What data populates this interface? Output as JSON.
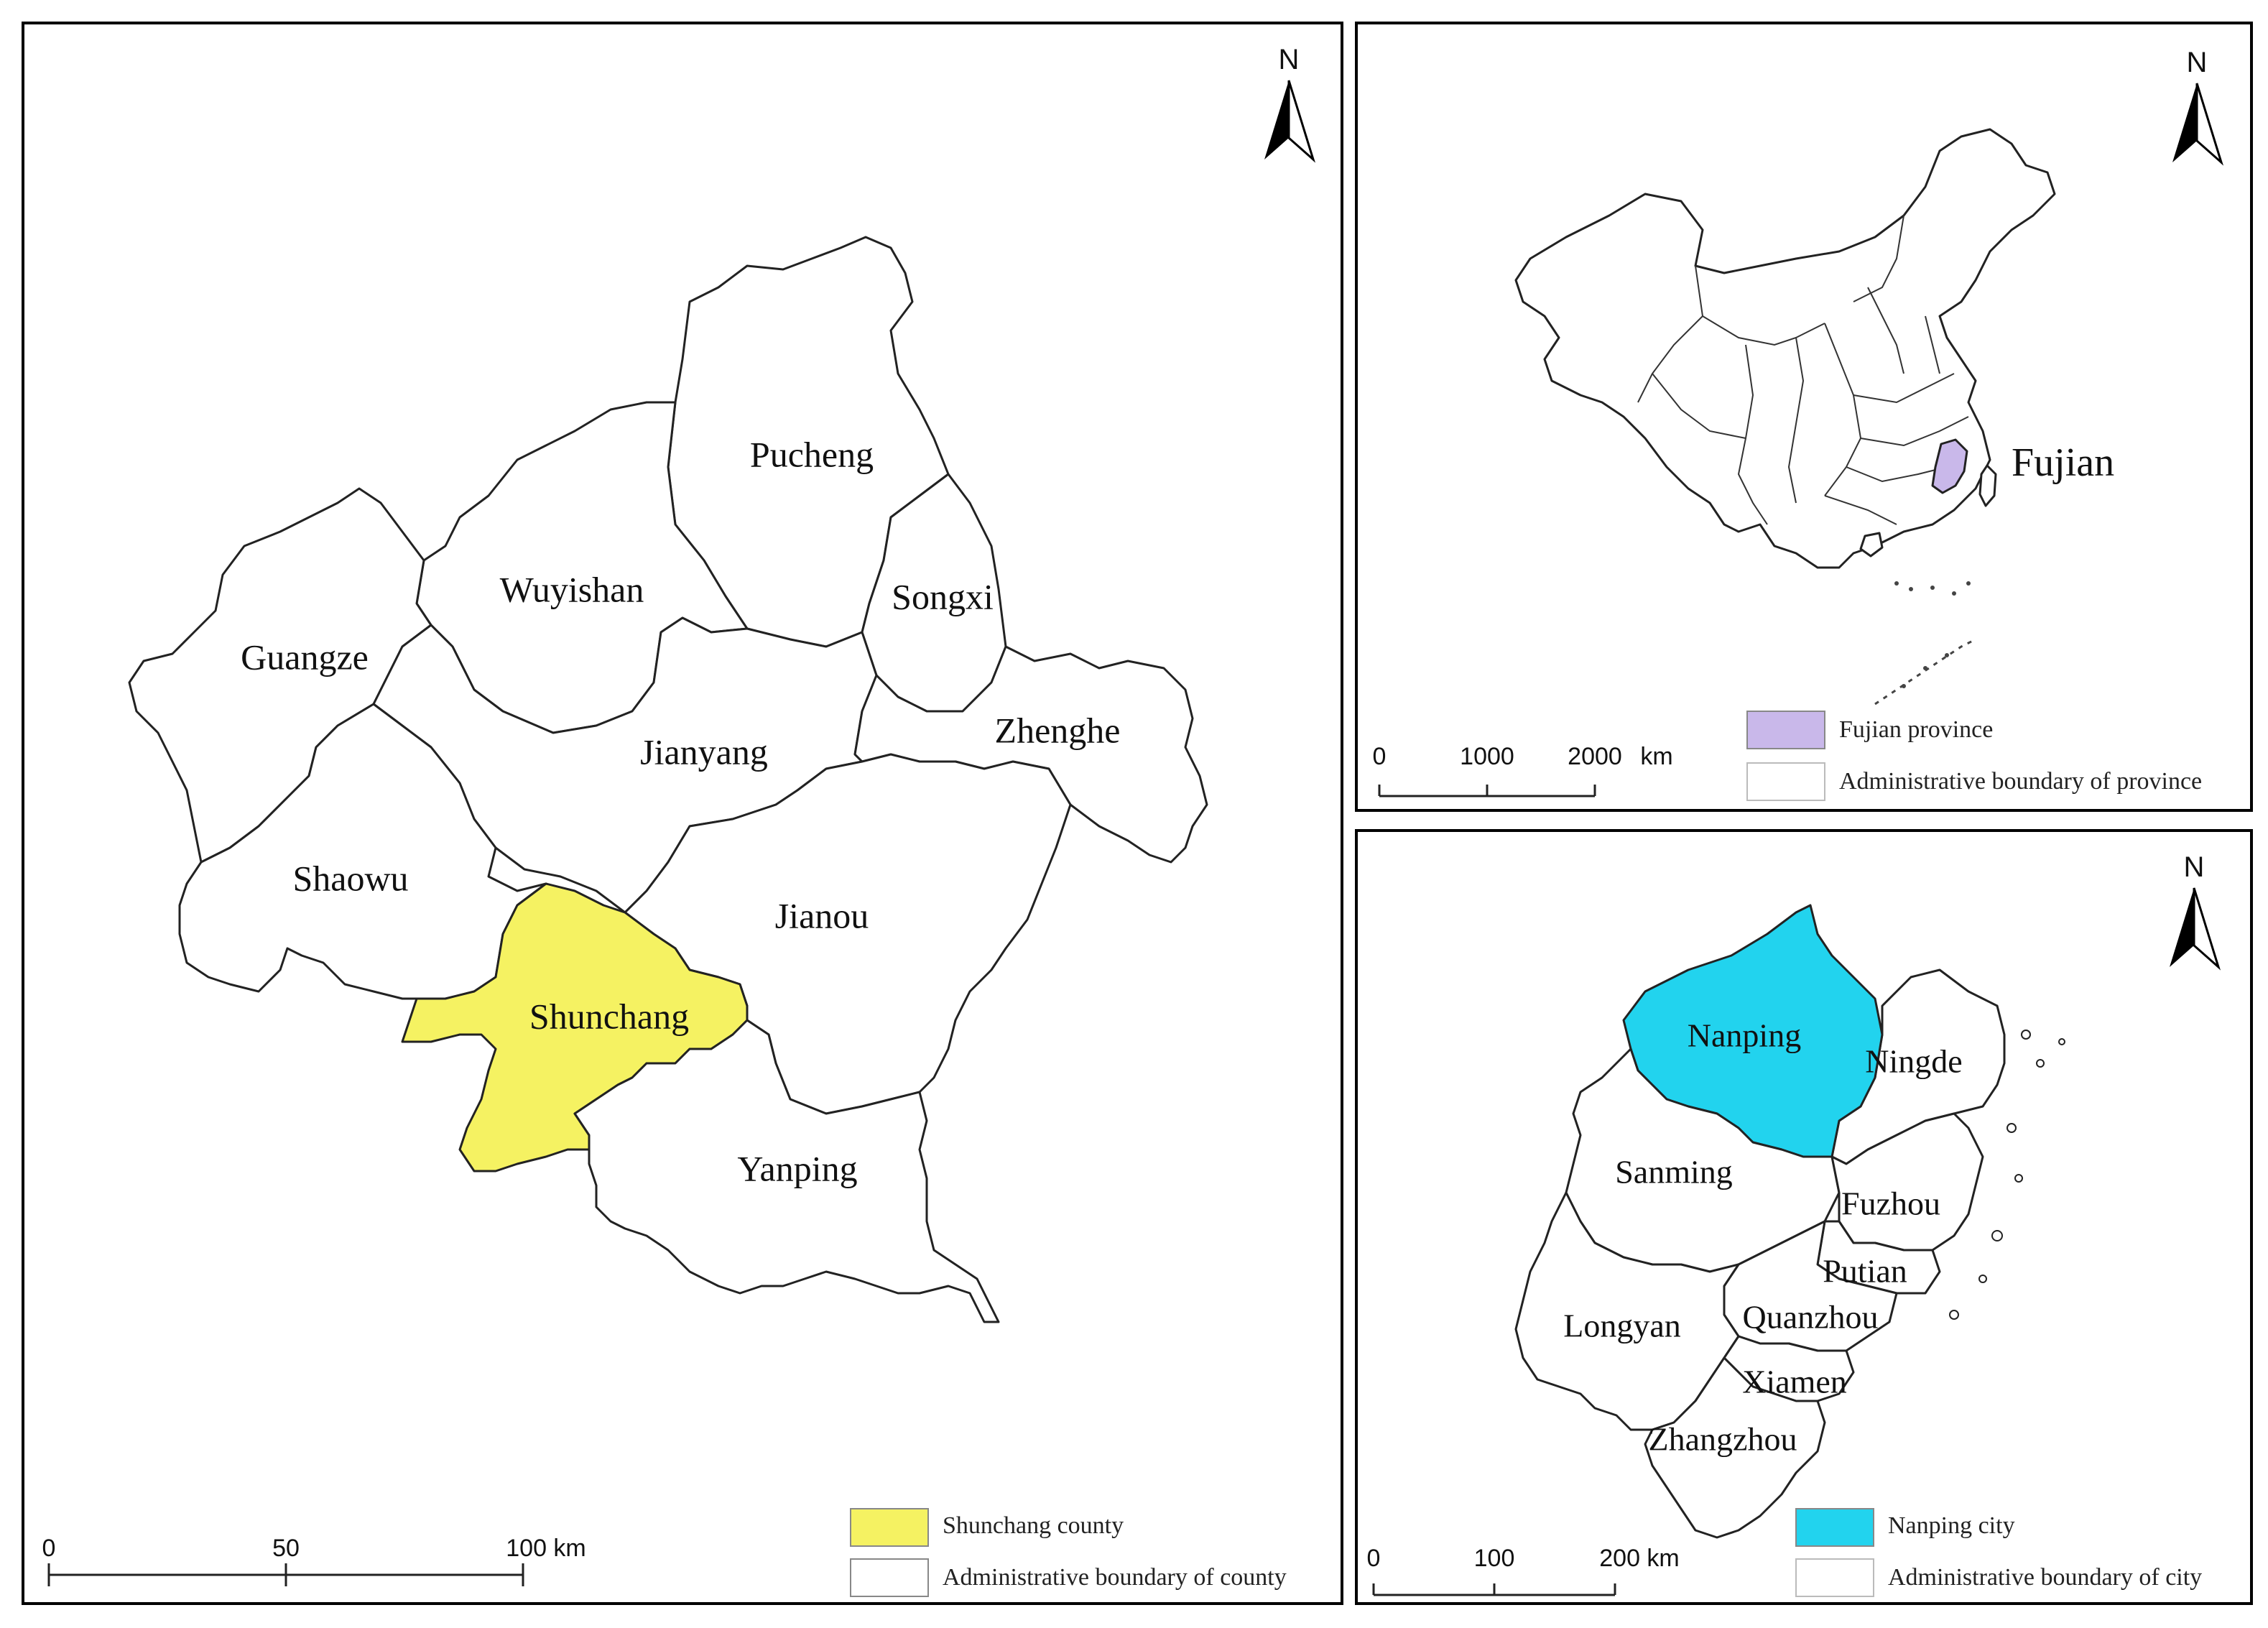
{
  "left_map": {
    "north": "N",
    "counties": [
      {
        "name": "Pucheng",
        "selected": false
      },
      {
        "name": "Wuyishan",
        "selected": false
      },
      {
        "name": "Songxi",
        "selected": false
      },
      {
        "name": "Guangze",
        "selected": false
      },
      {
        "name": "Jianyang",
        "selected": false
      },
      {
        "name": "Zhenghe",
        "selected": false
      },
      {
        "name": "Shaowu",
        "selected": false
      },
      {
        "name": "Jianou",
        "selected": false
      },
      {
        "name": "Shunchang",
        "selected": true
      },
      {
        "name": "Yanping",
        "selected": false
      }
    ],
    "scale": {
      "ticks": [
        "0",
        "50",
        "100 km"
      ]
    },
    "legend": [
      {
        "label": "Shunchang county",
        "color": "#f5f262"
      },
      {
        "label": "Administrative boundary of county",
        "color": "#ffffff"
      }
    ]
  },
  "china_map": {
    "north": "N",
    "highlight_label": "Fujian",
    "highlight_color": "#c9b8ea",
    "scale": {
      "ticks": [
        "0",
        "1000",
        "2000",
        "km"
      ]
    },
    "legend": [
      {
        "label": "Fujian province",
        "color": "#c9b8ea"
      },
      {
        "label": "Administrative boundary of province",
        "color": "#ffffff"
      }
    ]
  },
  "fujian_map": {
    "north": "N",
    "cities": [
      {
        "name": "Nanping",
        "selected": true
      },
      {
        "name": "Ningde",
        "selected": false
      },
      {
        "name": "Sanming",
        "selected": false
      },
      {
        "name": "Fuzhou",
        "selected": false
      },
      {
        "name": "Putian",
        "selected": false
      },
      {
        "name": "Longyan",
        "selected": false
      },
      {
        "name": "Quanzhou",
        "selected": false
      },
      {
        "name": "Xiamen",
        "selected": false
      },
      {
        "name": "Zhangzhou",
        "selected": false
      }
    ],
    "scale": {
      "ticks": [
        "0",
        "100",
        "200 km"
      ]
    },
    "legend": [
      {
        "label": "Nanping city",
        "color": "#22d3ee"
      },
      {
        "label": "Administrative boundary of city",
        "color": "#ffffff"
      }
    ]
  }
}
